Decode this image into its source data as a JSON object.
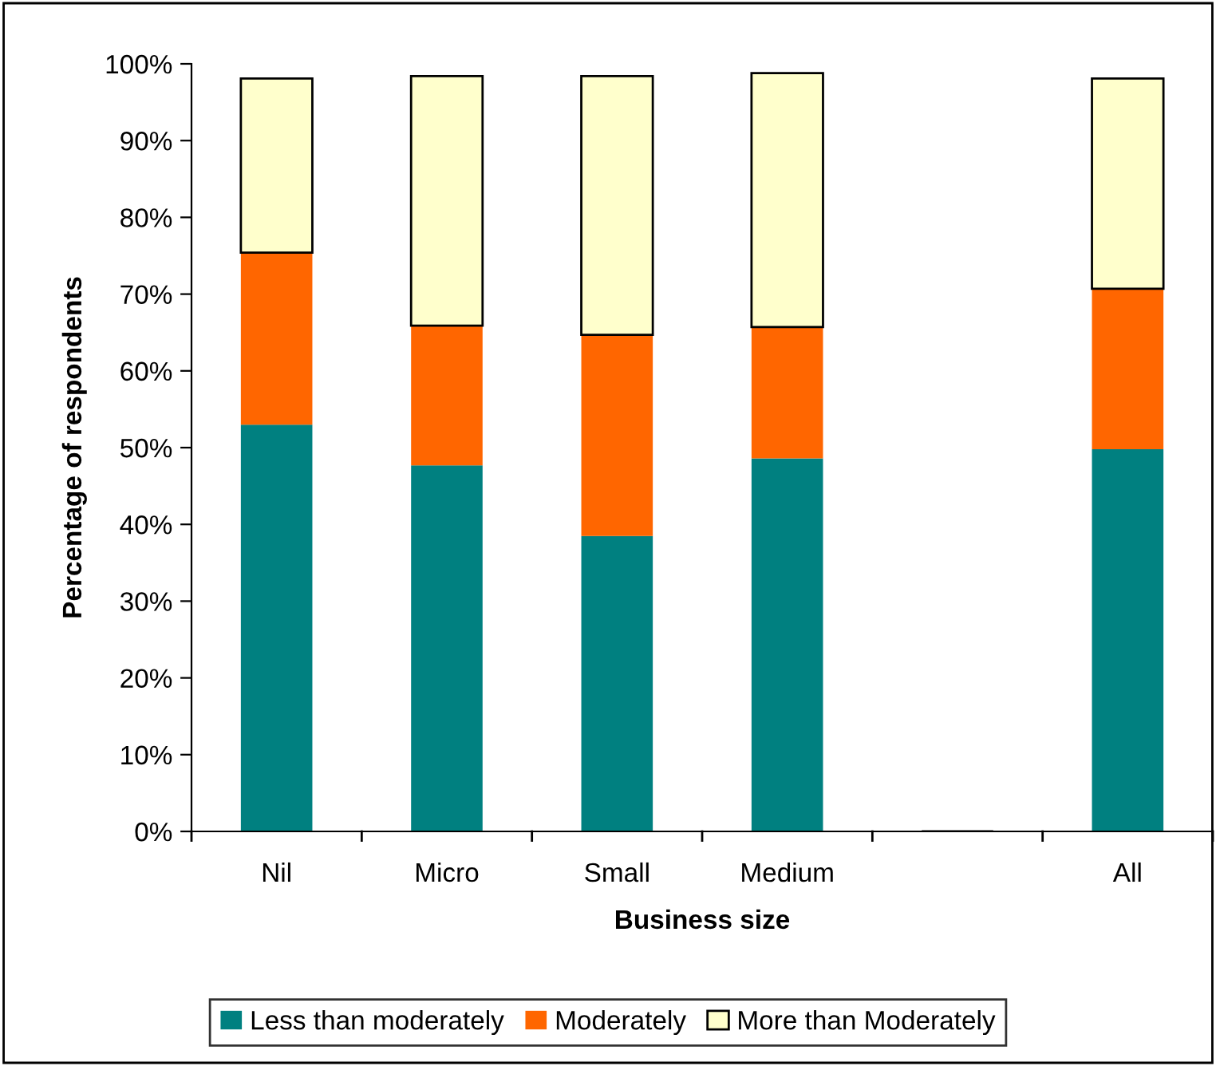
{
  "chart_data": {
    "type": "bar",
    "stacked": true,
    "xlabel": "Business size",
    "ylabel": "Percentage of respondents",
    "categories": [
      "Nil",
      "Micro",
      "Small",
      "Medium",
      null,
      "All"
    ],
    "series": [
      {
        "name": "Less than moderately",
        "color": "#008080",
        "values": [
          53.0,
          47.7,
          38.5,
          48.6,
          null,
          49.8
        ]
      },
      {
        "name": "Moderately",
        "color": "#ff6600",
        "values": [
          22.4,
          18.2,
          26.2,
          17.1,
          null,
          20.9
        ]
      },
      {
        "name": "More than Moderately",
        "color": "#ffffcc",
        "values": [
          22.7,
          32.5,
          33.7,
          33.1,
          null,
          27.4
        ]
      }
    ],
    "ylim": [
      0,
      100
    ],
    "yticks": [
      {
        "value": 0,
        "label": "0%"
      },
      {
        "value": 10,
        "label": "10%"
      },
      {
        "value": 20,
        "label": "20%"
      },
      {
        "value": 30,
        "label": "30%"
      },
      {
        "value": 40,
        "label": "40%"
      },
      {
        "value": 50,
        "label": "50%"
      },
      {
        "value": 60,
        "label": "60%"
      },
      {
        "value": 70,
        "label": "70%"
      },
      {
        "value": 80,
        "label": "80%"
      },
      {
        "value": 90,
        "label": "90%"
      },
      {
        "value": 100,
        "label": "100%"
      }
    ],
    "grid": false,
    "legend": "bottom"
  }
}
